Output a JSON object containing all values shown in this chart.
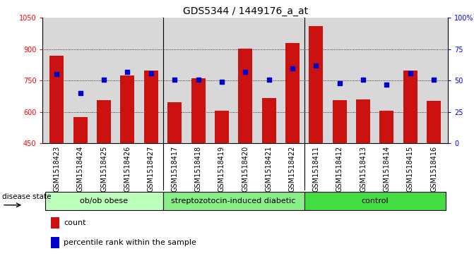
{
  "title": "GDS5344 / 1449176_a_at",
  "samples": [
    "GSM1518423",
    "GSM1518424",
    "GSM1518425",
    "GSM1518426",
    "GSM1518427",
    "GSM1518417",
    "GSM1518418",
    "GSM1518419",
    "GSM1518420",
    "GSM1518421",
    "GSM1518422",
    "GSM1518411",
    "GSM1518412",
    "GSM1518413",
    "GSM1518414",
    "GSM1518415",
    "GSM1518416"
  ],
  "counts": [
    870,
    577,
    658,
    775,
    800,
    648,
    762,
    607,
    902,
    668,
    930,
    1010,
    658,
    660,
    607,
    800,
    655
  ],
  "percentile_ranks": [
    55,
    40,
    51,
    57,
    56,
    51,
    51,
    49,
    57,
    51,
    60,
    62,
    48,
    51,
    47,
    56,
    51
  ],
  "groups": [
    {
      "name": "ob/ob obese",
      "start": 0,
      "end": 5,
      "color": "#bbffbb"
    },
    {
      "name": "streptozotocin-induced diabetic",
      "start": 5,
      "end": 11,
      "color": "#88ee88"
    },
    {
      "name": "control",
      "start": 11,
      "end": 17,
      "color": "#44dd44"
    }
  ],
  "bar_color": "#cc1111",
  "dot_color": "#0000cc",
  "left_ylim": [
    450,
    1050
  ],
  "right_ylim": [
    0,
    100
  ],
  "left_yticks": [
    450,
    600,
    750,
    900,
    1050
  ],
  "right_yticks": [
    0,
    25,
    50,
    75,
    100
  ],
  "right_yticklabels": [
    "0",
    "25",
    "50",
    "75",
    "100%"
  ],
  "grid_yticks": [
    600,
    750,
    900
  ],
  "background_color": "#d8d8d8",
  "title_fontsize": 10,
  "tick_fontsize": 7,
  "label_fontsize": 7.5,
  "group_fontsize": 8,
  "legend_fontsize": 8
}
